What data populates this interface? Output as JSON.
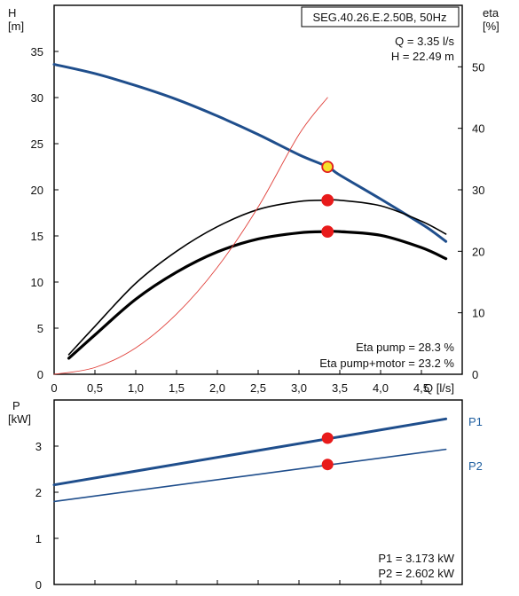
{
  "chart_data": [
    {
      "type": "line",
      "title": "SEG.40.26.E.2.50B, 50Hz",
      "xlabel": "Q [l/s]",
      "x_unit_label": "Q [l/s]",
      "ylabel_left": "H",
      "ylabel_left_unit": "[m]",
      "ylabel_right": "eta",
      "ylabel_right_unit": "[%]",
      "xlim": [
        0,
        5.0
      ],
      "ylim_left": [
        0,
        40
      ],
      "ylim_right": [
        0,
        60
      ],
      "x_ticks": [
        "0",
        "0,5",
        "1,0",
        "1,5",
        "2,0",
        "2,5",
        "3,0",
        "3,5",
        "4,0",
        "4,5"
      ],
      "x_tick_values": [
        0,
        0.5,
        1.0,
        1.5,
        2.0,
        2.5,
        3.0,
        3.5,
        4.0,
        4.5
      ],
      "y_left_ticks": [
        "0",
        "5",
        "10",
        "15",
        "20",
        "25",
        "30",
        "35"
      ],
      "y_left_tick_values": [
        0,
        5,
        10,
        15,
        20,
        25,
        30,
        35
      ],
      "y_right_ticks": [
        "0",
        "10",
        "20",
        "30",
        "40",
        "50"
      ],
      "y_right_tick_values": [
        0,
        10,
        20,
        30,
        40,
        50
      ],
      "grid": false,
      "annotations": {
        "q_label": "Q = 3.35 l/s",
        "h_label": "H = 22.49 m",
        "eta_pump_label": "Eta pump = 28.3 %",
        "eta_total_label": "Eta pump+motor = 23.2 %"
      },
      "series": [
        {
          "axis": "left",
          "color": "#1f4e8c",
          "x": [
            0,
            0.5,
            1.0,
            1.5,
            2.0,
            2.5,
            3.0,
            3.35,
            3.5,
            4.0,
            4.5,
            4.65,
            4.8
          ],
          "y": [
            33.6,
            32.6,
            31.3,
            29.8,
            28.0,
            26.0,
            23.8,
            22.49,
            21.6,
            19.0,
            16.3,
            15.4,
            14.4
          ]
        },
        {
          "axis": "right",
          "color": "#000000",
          "x": [
            0.18,
            0.5,
            1.0,
            1.5,
            2.0,
            2.5,
            3.0,
            3.35,
            3.5,
            4.0,
            4.5,
            4.8
          ],
          "y": [
            3.2,
            7.8,
            14.8,
            20.0,
            24.0,
            26.8,
            28.1,
            28.3,
            28.3,
            27.4,
            24.9,
            22.8
          ]
        },
        {
          "axis": "right",
          "color": "#000000",
          "x": [
            0.18,
            0.5,
            1.0,
            1.5,
            2.0,
            2.5,
            3.0,
            3.35,
            3.5,
            4.0,
            4.5,
            4.8
          ],
          "y": [
            2.6,
            6.4,
            12.2,
            16.6,
            19.9,
            22.0,
            23.0,
            23.2,
            23.2,
            22.6,
            20.6,
            18.8
          ]
        },
        {
          "axis": "right",
          "color": "#e0403a",
          "x": [
            0,
            0.5,
            1.0,
            1.5,
            2.0,
            2.5,
            3.0,
            3.35
          ],
          "y": [
            0,
            1.1,
            4.3,
            9.8,
            17.4,
            27.2,
            39.0,
            45.0
          ]
        }
      ],
      "operating_points": [
        {
          "x": 3.35,
          "y": 22.49,
          "axis": "left",
          "fill": "#f5e12a",
          "stroke": "#e02020"
        },
        {
          "x": 3.35,
          "y": 28.3,
          "axis": "right",
          "fill": "#e81b1b",
          "stroke": "#e81b1b"
        },
        {
          "x": 3.35,
          "y": 23.2,
          "axis": "right",
          "fill": "#e81b1b",
          "stroke": "#e81b1b"
        }
      ]
    },
    {
      "type": "line",
      "title": "",
      "xlabel": "",
      "ylabel": "P",
      "ylabel_unit": "[kW]",
      "xlim": [
        0,
        5.0
      ],
      "ylim": [
        0,
        4.0
      ],
      "y_ticks": [
        "0",
        "1",
        "2",
        "3"
      ],
      "y_tick_values": [
        0,
        1,
        2,
        3
      ],
      "grid": false,
      "annotations": {
        "p1_label": "P1 = 3.173 kW",
        "p2_label": "P2 = 2.602 kW"
      },
      "series": [
        {
          "name": "P1",
          "color": "#1f4e8c",
          "x": [
            0,
            4.8
          ],
          "y": [
            2.16,
            3.59
          ]
        },
        {
          "name": "P2",
          "color": "#1f4e8c",
          "x": [
            0,
            4.8
          ],
          "y": [
            1.8,
            2.93
          ]
        }
      ],
      "operating_points": [
        {
          "x": 3.35,
          "y": 3.173,
          "fill": "#e81b1b"
        },
        {
          "x": 3.35,
          "y": 2.602,
          "fill": "#e81b1b"
        }
      ]
    }
  ]
}
